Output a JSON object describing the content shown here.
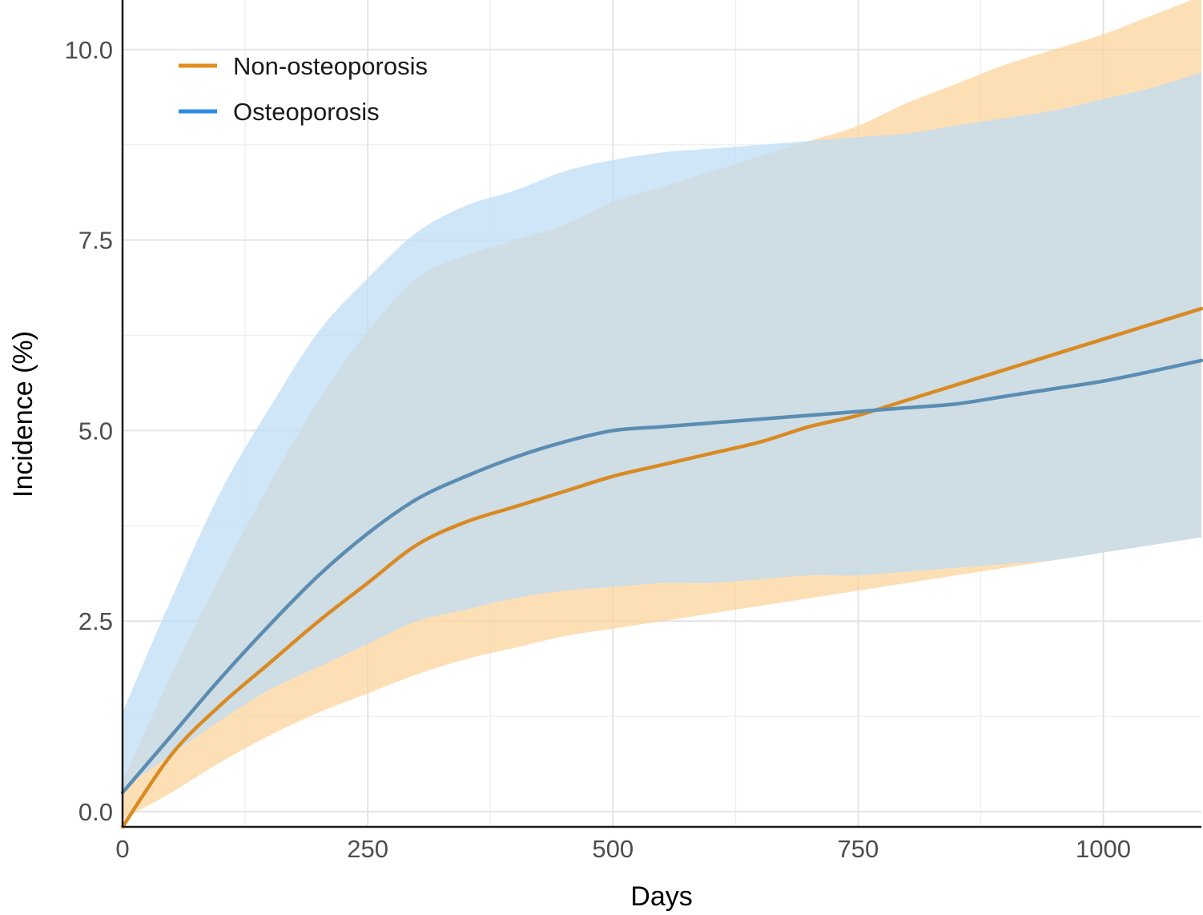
{
  "chart_data": {
    "type": "line",
    "title": "",
    "xlabel": "Days",
    "ylabel": "Incidence (%)",
    "xlim": [
      0,
      1100
    ],
    "ylim": [
      -0.2,
      10.65
    ],
    "x_ticks": [
      0,
      250,
      500,
      750,
      1000
    ],
    "x_tick_labels": [
      "0",
      "250",
      "500",
      "750",
      "1000"
    ],
    "y_ticks": [
      0,
      2.5,
      5,
      7.5,
      10
    ],
    "y_tick_labels": [
      "0.0",
      "2.5",
      "5.0",
      "7.5",
      "10.0"
    ],
    "grid": true,
    "legend_position": "top-left",
    "series": [
      {
        "name": "Non-osteoporosis",
        "color": "#e08e1b",
        "band_color": "#fcd29a",
        "x": [
          0,
          50,
          100,
          150,
          200,
          250,
          300,
          350,
          400,
          450,
          500,
          550,
          600,
          650,
          700,
          750,
          800,
          850,
          900,
          950,
          1000,
          1050,
          1100
        ],
        "y": [
          -0.2,
          0.75,
          1.4,
          1.95,
          2.5,
          3.0,
          3.5,
          3.8,
          4.0,
          4.2,
          4.4,
          4.55,
          4.7,
          4.85,
          5.05,
          5.2,
          5.4,
          5.6,
          5.8,
          6.0,
          6.2,
          6.4,
          6.6
        ],
        "lower": [
          -0.1,
          0.25,
          0.65,
          1.0,
          1.3,
          1.55,
          1.8,
          2.0,
          2.15,
          2.3,
          2.4,
          2.5,
          2.6,
          2.7,
          2.8,
          2.9,
          3.0,
          3.1,
          3.2,
          3.3,
          3.4,
          3.5,
          3.6
        ],
        "upper": [
          0.4,
          1.8,
          3.1,
          4.3,
          5.4,
          6.3,
          7.0,
          7.3,
          7.5,
          7.7,
          8.0,
          8.2,
          8.4,
          8.6,
          8.8,
          9.0,
          9.3,
          9.55,
          9.8,
          10.0,
          10.2,
          10.45,
          10.7
        ]
      },
      {
        "name": "Osteoporosis",
        "color": "#2b8ce6",
        "band_color": "#bddcf7",
        "x": [
          0,
          50,
          100,
          150,
          200,
          250,
          300,
          350,
          400,
          450,
          500,
          550,
          600,
          650,
          700,
          750,
          800,
          850,
          900,
          950,
          1000,
          1050,
          1100
        ],
        "y": [
          0.25,
          1.0,
          1.75,
          2.45,
          3.1,
          3.65,
          4.1,
          4.4,
          4.65,
          4.85,
          5.0,
          5.05,
          5.1,
          5.15,
          5.2,
          5.25,
          5.3,
          5.35,
          5.45,
          5.55,
          5.65,
          5.78,
          5.92
        ],
        "lower": [
          0.3,
          0.75,
          1.2,
          1.6,
          1.9,
          2.2,
          2.5,
          2.65,
          2.8,
          2.9,
          2.95,
          3.0,
          3.0,
          3.05,
          3.1,
          3.1,
          3.15,
          3.2,
          3.25,
          3.3,
          3.4,
          3.5,
          3.6
        ],
        "upper": [
          1.3,
          2.8,
          4.2,
          5.3,
          6.3,
          7.0,
          7.6,
          7.95,
          8.15,
          8.4,
          8.55,
          8.65,
          8.7,
          8.75,
          8.8,
          8.85,
          8.9,
          9.0,
          9.1,
          9.2,
          9.35,
          9.5,
          9.7
        ]
      }
    ]
  }
}
